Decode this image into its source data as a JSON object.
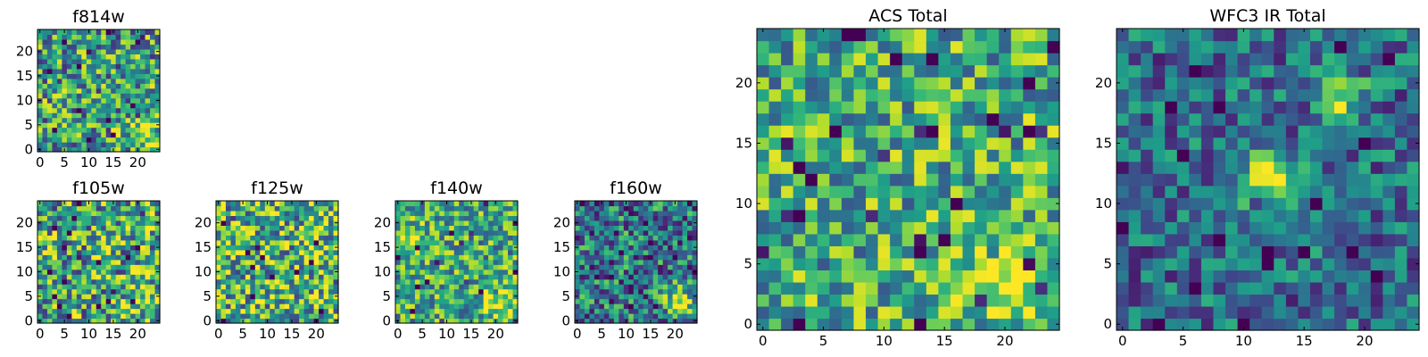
{
  "chart_data": [
    {
      "type": "heatmap",
      "title": "f814w",
      "grid_size": 25,
      "xlim": [
        -0.5,
        24.5
      ],
      "ylim": [
        -0.5,
        24.5
      ],
      "xticks": [
        0,
        5,
        10,
        15,
        20
      ],
      "yticks": [
        0,
        5,
        10,
        15,
        20
      ],
      "colormap": "viridis",
      "seed": 11,
      "noise": 0.6,
      "base": 0.55,
      "blobs": [
        {
          "x": 21,
          "y": 4,
          "r": 2.5,
          "amp": 0.35
        }
      ]
    },
    {
      "type": "heatmap",
      "title": "f105w",
      "grid_size": 25,
      "xlim": [
        -0.5,
        24.5
      ],
      "ylim": [
        -0.5,
        24.5
      ],
      "xticks": [
        0,
        5,
        10,
        15,
        20
      ],
      "yticks": [
        0,
        5,
        10,
        15,
        20
      ],
      "colormap": "viridis",
      "seed": 23,
      "noise": 0.65,
      "base": 0.6,
      "blobs": [
        {
          "x": 21,
          "y": 5,
          "r": 2.5,
          "amp": 0.3
        }
      ]
    },
    {
      "type": "heatmap",
      "title": "f125w",
      "grid_size": 25,
      "xlim": [
        -0.5,
        24.5
      ],
      "ylim": [
        -0.5,
        24.5
      ],
      "xticks": [
        0,
        5,
        10,
        15,
        20
      ],
      "yticks": [
        0,
        5,
        10,
        15,
        20
      ],
      "colormap": "viridis",
      "seed": 37,
      "noise": 0.65,
      "base": 0.65,
      "blobs": []
    },
    {
      "type": "heatmap",
      "title": "f140w",
      "grid_size": 25,
      "xlim": [
        -0.5,
        24.5
      ],
      "ylim": [
        -0.5,
        24.5
      ],
      "xticks": [
        0,
        5,
        10,
        15,
        20
      ],
      "yticks": [
        0,
        5,
        10,
        15,
        20
      ],
      "colormap": "viridis",
      "seed": 41,
      "noise": 0.5,
      "base": 0.6,
      "blobs": [
        {
          "x": 21,
          "y": 4,
          "r": 2.5,
          "amp": 0.35
        },
        {
          "x": 2,
          "y": 17,
          "r": 2,
          "amp": 0.25
        }
      ]
    },
    {
      "type": "heatmap",
      "title": "f160w",
      "grid_size": 25,
      "xlim": [
        -0.5,
        24.5
      ],
      "ylim": [
        -0.5,
        24.5
      ],
      "xticks": [
        0,
        5,
        10,
        15,
        20
      ],
      "yticks": [
        0,
        5,
        10,
        15,
        20
      ],
      "colormap": "viridis",
      "seed": 53,
      "noise": 0.55,
      "base": 0.4,
      "blobs": [
        {
          "x": 21,
          "y": 4,
          "r": 2.5,
          "amp": 0.5
        }
      ]
    },
    {
      "type": "heatmap",
      "title": "ACS Total",
      "grid_size": 25,
      "xlim": [
        -0.5,
        24.5
      ],
      "ylim": [
        -0.5,
        24.5
      ],
      "xticks": [
        0,
        5,
        10,
        15,
        20
      ],
      "yticks": [
        0,
        5,
        10,
        15,
        20
      ],
      "colormap": "viridis",
      "seed": 67,
      "noise": 0.5,
      "base": 0.62,
      "blobs": [
        {
          "x": 20,
          "y": 4,
          "r": 2.5,
          "amp": 0.35
        }
      ]
    },
    {
      "type": "heatmap",
      "title": "WFC3 IR Total",
      "grid_size": 25,
      "xlim": [
        -0.5,
        24.5
      ],
      "ylim": [
        -0.5,
        24.5
      ],
      "xticks": [
        0,
        5,
        10,
        15,
        20
      ],
      "yticks": [
        0,
        5,
        10,
        15,
        20
      ],
      "colormap": "viridis",
      "seed": 79,
      "noise": 0.4,
      "base": 0.36,
      "blobs": [
        {
          "x": 12,
          "y": 12,
          "r": 1.6,
          "amp": 0.65
        },
        {
          "x": 18,
          "y": 19,
          "r": 1.3,
          "amp": 0.55
        }
      ]
    }
  ]
}
